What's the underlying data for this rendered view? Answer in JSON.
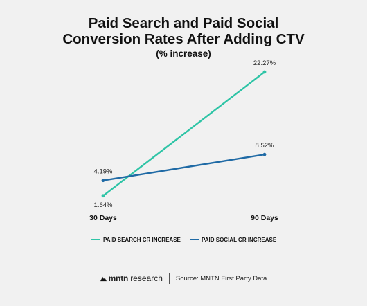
{
  "chart_data": {
    "type": "line",
    "title_line1": "Paid Search and Paid Social",
    "title_line2": "Conversion Rates After Adding CTV",
    "subtitle": "(% increase)",
    "categories": [
      "30 Days",
      "90 Days"
    ],
    "series": [
      {
        "name": "PAID SEARCH CR INCREASE",
        "values": [
          1.64,
          22.27
        ],
        "labels": [
          "1.64%",
          "22.27%"
        ],
        "color": "#2ec4a6"
      },
      {
        "name": "PAID SOCIAL CR INCREASE",
        "values": [
          4.19,
          8.52
        ],
        "labels": [
          "4.19%",
          "8.52%"
        ],
        "color": "#1f6aa5"
      }
    ],
    "ylim": [
      0,
      24
    ],
    "grid": false,
    "legend_position": "bottom"
  },
  "footer": {
    "brand_bold": "mntn",
    "brand_rest": "research",
    "source": "Source: MNTN First Party Data"
  },
  "colors": {
    "background": "#f1f1f1",
    "axis": "#c8c8c8"
  }
}
